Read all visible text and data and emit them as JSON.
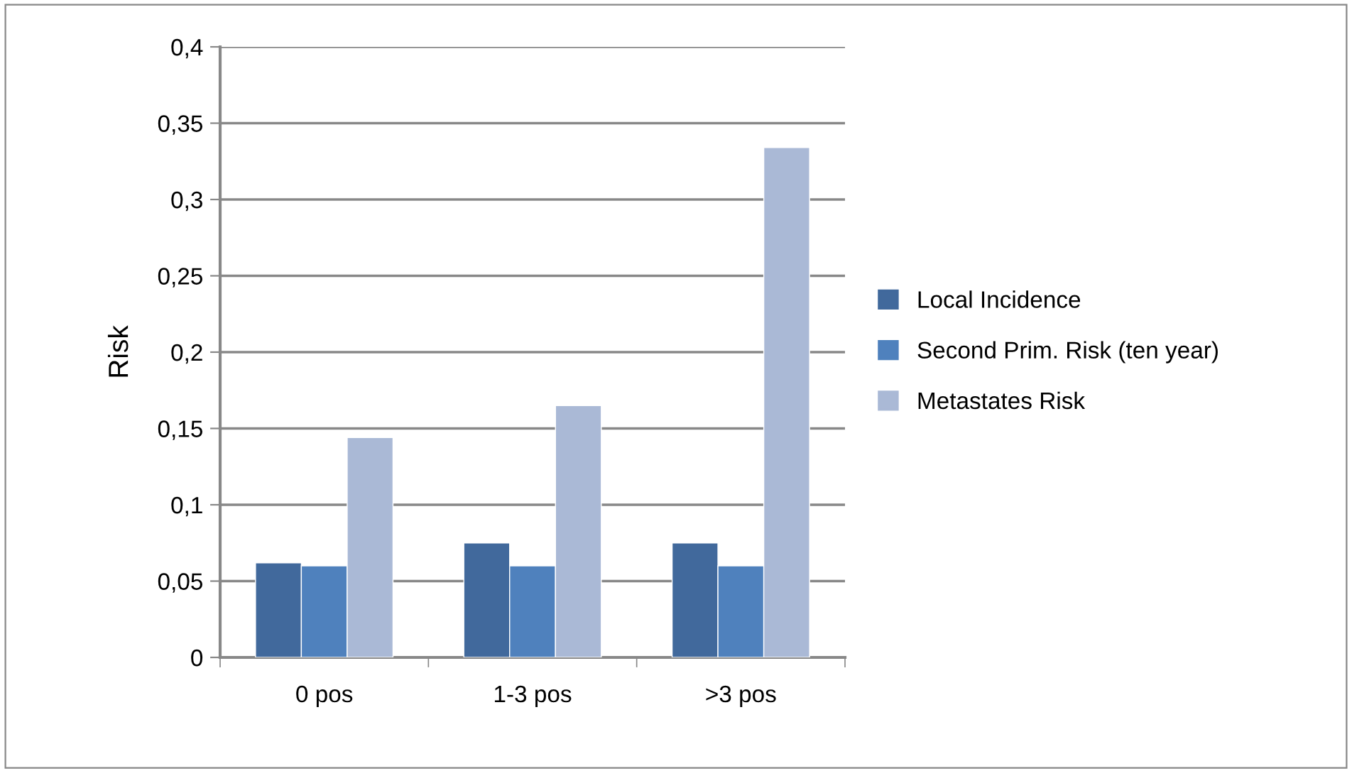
{
  "chart_data": {
    "type": "bar",
    "ylabel": "Risk",
    "categories": [
      "0 pos",
      "1-3 pos",
      ">3 pos"
    ],
    "series": [
      {
        "name": "Local Incidence",
        "color": "#41699c",
        "values": [
          0.062,
          0.075,
          0.075
        ]
      },
      {
        "name": "Second Prim. Risk (ten year)",
        "color": "#4f81bd",
        "values": [
          0.06,
          0.06,
          0.06
        ]
      },
      {
        "name": "Metastates Risk",
        "color": "#aab9d6",
        "values": [
          0.144,
          0.165,
          0.334
        ]
      }
    ],
    "ylim": [
      0,
      0.4
    ],
    "yticks": [
      {
        "value": 0,
        "label": "0"
      },
      {
        "value": 0.05,
        "label": "0,05"
      },
      {
        "value": 0.1,
        "label": "0,1"
      },
      {
        "value": 0.15,
        "label": "0,15"
      },
      {
        "value": 0.2,
        "label": "0,2"
      },
      {
        "value": 0.25,
        "label": "0,25"
      },
      {
        "value": 0.3,
        "label": "0,3"
      },
      {
        "value": 0.35,
        "label": "0,35"
      },
      {
        "value": 0.4,
        "label": "0,4"
      }
    ],
    "grid": "y",
    "legend": "right"
  }
}
